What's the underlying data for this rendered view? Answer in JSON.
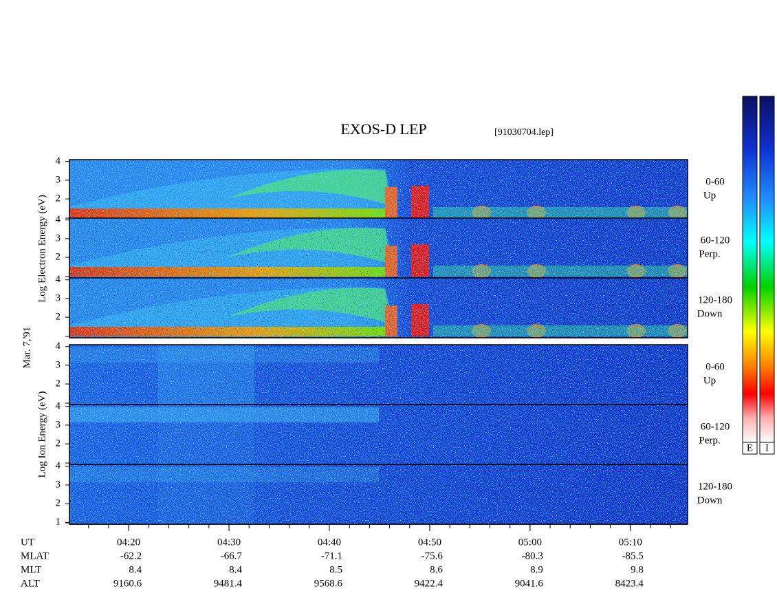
{
  "chart_data": {
    "type": "spectrogram",
    "title": "EXOS-D LEP",
    "subtitle": "[91030704.lep]",
    "date_label": "Mar. 7,'91",
    "groups": [
      {
        "ylabel": "Log Electron Energy (eV)",
        "colorbar": "E",
        "panels": [
          {
            "angle": "0-60",
            "direction": "Up"
          },
          {
            "angle": "60-120",
            "direction": "Perp."
          },
          {
            "angle": "120-180",
            "direction": "Down"
          }
        ]
      },
      {
        "ylabel": "Log Ion Energy (eV)",
        "colorbar": "I",
        "panels": [
          {
            "angle": "0-60",
            "direction": "Up"
          },
          {
            "angle": "60-120",
            "direction": "Perp."
          },
          {
            "angle": "120-180",
            "direction": "Down"
          }
        ]
      }
    ],
    "ylim": [
      0.9,
      4.1
    ],
    "yticks": [
      2,
      3,
      4
    ],
    "bottom_yticks": [
      1,
      2,
      3,
      4
    ],
    "xlim": [
      254.1,
      315.7
    ],
    "xticks": [
      {
        "value": 260,
        "label": "04:20"
      },
      {
        "value": 270,
        "label": "04:30"
      },
      {
        "value": 280,
        "label": "04:40"
      },
      {
        "value": 290,
        "label": "04:50"
      },
      {
        "value": 300,
        "label": "05:00"
      },
      {
        "value": 310,
        "label": "05:10"
      }
    ],
    "xlabel": "UT",
    "ephemeris": [
      {
        "name": "MLAT",
        "values": [
          -62.2,
          -66.7,
          -71.1,
          -75.6,
          -80.3,
          -85.5
        ]
      },
      {
        "name": "MLT",
        "values": [
          8.4,
          8.4,
          8.5,
          8.6,
          8.9,
          9.8
        ]
      },
      {
        "name": "ALT",
        "values": [
          9160.6,
          9481.4,
          9568.6,
          9422.4,
          9041.6,
          8423.4
        ]
      }
    ]
  }
}
